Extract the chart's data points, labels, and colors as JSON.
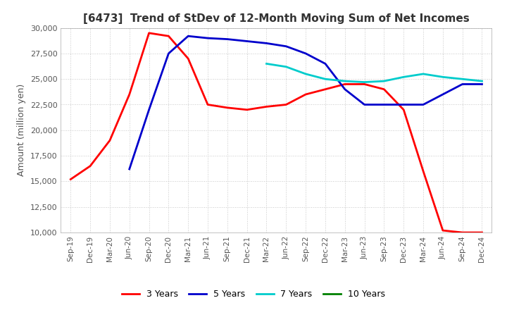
{
  "title": "[6473]  Trend of StDev of 12-Month Moving Sum of Net Incomes",
  "ylabel": "Amount (million yen)",
  "ylim": [
    10000,
    30000
  ],
  "yticks": [
    10000,
    12500,
    15000,
    17500,
    20000,
    22500,
    25000,
    27500,
    30000
  ],
  "background_color": "#ffffff",
  "grid_color": "#c8c8c8",
  "series": {
    "3 Years": {
      "color": "#ff0000",
      "data": [
        [
          "Sep-19",
          15200
        ],
        [
          "Dec-19",
          16500
        ],
        [
          "Mar-20",
          19000
        ],
        [
          "Jun-20",
          23500
        ],
        [
          "Sep-20",
          29500
        ],
        [
          "Dec-20",
          29200
        ],
        [
          "Mar-21",
          27000
        ],
        [
          "Jun-21",
          22500
        ],
        [
          "Sep-21",
          22200
        ],
        [
          "Dec-21",
          22000
        ],
        [
          "Mar-22",
          22300
        ],
        [
          "Jun-22",
          22500
        ],
        [
          "Sep-22",
          23500
        ],
        [
          "Dec-22",
          24000
        ],
        [
          "Mar-23",
          24500
        ],
        [
          "Jun-23",
          24500
        ],
        [
          "Sep-23",
          24000
        ],
        [
          "Dec-23",
          22000
        ],
        [
          "Mar-24",
          16000
        ],
        [
          "Jun-24",
          10200
        ],
        [
          "Sep-24",
          10000
        ],
        [
          "Dec-24",
          10000
        ]
      ]
    },
    "5 Years": {
      "color": "#0000cc",
      "data": [
        [
          "Jun-20",
          16200
        ],
        [
          "Sep-20",
          22000
        ],
        [
          "Dec-20",
          27500
        ],
        [
          "Mar-21",
          29200
        ],
        [
          "Jun-21",
          29000
        ],
        [
          "Sep-21",
          28900
        ],
        [
          "Dec-21",
          28700
        ],
        [
          "Mar-22",
          28500
        ],
        [
          "Jun-22",
          28200
        ],
        [
          "Sep-22",
          27500
        ],
        [
          "Dec-22",
          26500
        ],
        [
          "Mar-23",
          24000
        ],
        [
          "Jun-23",
          22500
        ],
        [
          "Sep-23",
          22500
        ],
        [
          "Dec-23",
          22500
        ],
        [
          "Mar-24",
          22500
        ],
        [
          "Jun-24",
          23500
        ],
        [
          "Sep-24",
          24500
        ],
        [
          "Dec-24",
          24500
        ]
      ]
    },
    "7 Years": {
      "color": "#00cccc",
      "data": [
        [
          "Mar-22",
          26500
        ],
        [
          "Jun-22",
          26200
        ],
        [
          "Sep-22",
          25500
        ],
        [
          "Dec-22",
          25000
        ],
        [
          "Mar-23",
          24800
        ],
        [
          "Jun-23",
          24700
        ],
        [
          "Sep-23",
          24800
        ],
        [
          "Dec-23",
          25200
        ],
        [
          "Mar-24",
          25500
        ],
        [
          "Jun-24",
          25200
        ],
        [
          "Sep-24",
          25000
        ],
        [
          "Dec-24",
          24800
        ]
      ]
    },
    "10 Years": {
      "color": "#008000",
      "data": []
    }
  },
  "x_tick_labels": [
    "Sep-19",
    "Dec-19",
    "Mar-20",
    "Jun-20",
    "Sep-20",
    "Dec-20",
    "Mar-21",
    "Jun-21",
    "Sep-21",
    "Dec-21",
    "Mar-22",
    "Jun-22",
    "Sep-22",
    "Dec-22",
    "Mar-23",
    "Jun-23",
    "Sep-23",
    "Dec-23",
    "Mar-24",
    "Jun-24",
    "Sep-24",
    "Dec-24"
  ]
}
